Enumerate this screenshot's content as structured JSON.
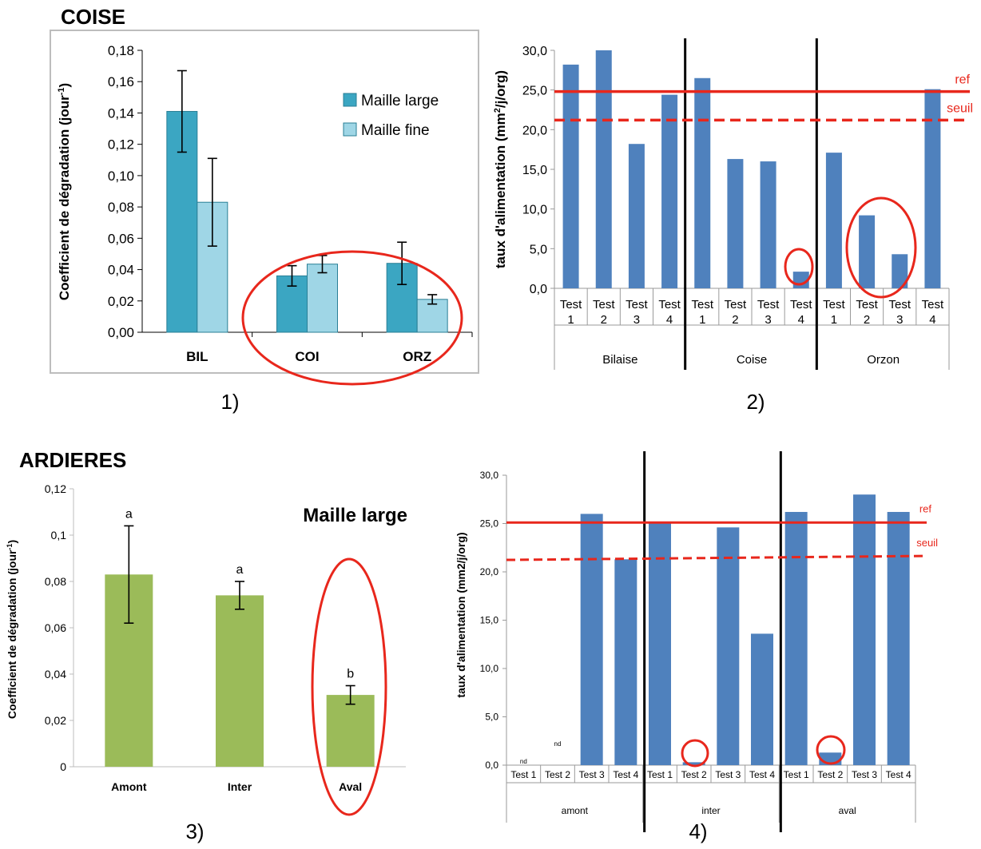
{
  "sections": {
    "top": "COISE",
    "bottom": "ARDIERES"
  },
  "panel_labels": [
    "1)",
    "2)",
    "3)",
    "4)"
  ],
  "colors": {
    "teal_dark": "#3ba6c2",
    "teal_light": "#9fd6e6",
    "blue": "#4f81bd",
    "green": "#9bbb59",
    "red": "#e8271c"
  },
  "chart_data": [
    {
      "id": "chart1",
      "type": "bar",
      "ylabel": "Coefficient de dégradation (jour",
      "ylabel_sup": "-1",
      "ylabel_close": ")",
      "ylim": [
        0,
        0.18
      ],
      "yticks": [
        "0,00",
        "0,02",
        "0,04",
        "0,06",
        "0,08",
        "0,10",
        "0,12",
        "0,14",
        "0,16",
        "0,18"
      ],
      "categories": [
        "BIL",
        "COI",
        "ORZ"
      ],
      "series": [
        {
          "name": "Maille large",
          "values": [
            0.141,
            0.036,
            0.044
          ],
          "errors": [
            0.026,
            0.0065,
            0.0135
          ]
        },
        {
          "name": "Maille fine",
          "values": [
            0.083,
            0.0435,
            0.021
          ],
          "errors": [
            0.028,
            0.0055,
            0.003
          ]
        }
      ],
      "legend": "top-right",
      "annotation": "red ellipse around COI and ORZ"
    },
    {
      "id": "chart2",
      "type": "bar",
      "ylabel": "taux d'alimentation (mm",
      "ylabel_sup": "2",
      "ylabel_close": "/j/org)",
      "ylim": [
        0,
        30
      ],
      "yticks": [
        "0,0",
        "5,0",
        "10,0",
        "15,0",
        "20,0",
        "25,0",
        "30,0"
      ],
      "groups": [
        "Bilaise",
        "Coise",
        "Orzon"
      ],
      "test_labels": [
        "Test",
        "Test",
        "Test",
        "Test",
        "Test",
        "Test",
        "Test",
        "Test",
        "Test",
        "Test",
        "Test",
        "Test"
      ],
      "test_numbers": [
        "1",
        "2",
        "3",
        "4",
        "1",
        "2",
        "3",
        "4",
        "1",
        "2",
        "3",
        "4"
      ],
      "values": [
        28.2,
        30.0,
        18.2,
        24.4,
        26.5,
        16.3,
        16.0,
        2.1,
        17.1,
        9.2,
        4.3,
        25.1
      ],
      "ref": {
        "label": "ref",
        "value": 24.8
      },
      "seuil": {
        "label": "seuil",
        "value": 21.2
      }
    },
    {
      "id": "chart3",
      "type": "bar",
      "title": "Maille large",
      "ylabel": "Coefficient de dégradation (jour",
      "ylabel_sup": "-1",
      "ylabel_close": ")",
      "ylim": [
        0,
        0.12
      ],
      "yticks": [
        "0",
        "0,02",
        "0,04",
        "0,06",
        "0,08",
        "0,1",
        "0,12"
      ],
      "categories": [
        "Amont",
        "Inter",
        "Aval"
      ],
      "values": [
        0.083,
        0.074,
        0.031
      ],
      "errors": [
        0.021,
        0.006,
        0.004
      ],
      "letters": [
        "a",
        "a",
        "b"
      ]
    },
    {
      "id": "chart4",
      "type": "bar",
      "ylabel": "taux d'alimentation (mm2/j/org)",
      "ylim": [
        0,
        30
      ],
      "yticks": [
        "0,0",
        "5,0",
        "10,0",
        "15,0",
        "20,0",
        "25,0",
        "30,0"
      ],
      "groups": [
        "amont",
        "inter",
        "aval"
      ],
      "tests": [
        "Test 1",
        "Test 2",
        "Test 3",
        "Test 4",
        "Test 1",
        "Test 2",
        "Test 3",
        "Test 4",
        "Test 1",
        "Test 2",
        "Test 3",
        "Test 4"
      ],
      "values": [
        null,
        null,
        26.0,
        21.3,
        25.0,
        0.3,
        24.6,
        13.6,
        26.2,
        1.3,
        28.0,
        26.2
      ],
      "nd_labels": [
        "nd",
        "nd"
      ],
      "ref": {
        "label": "ref",
        "value": 25.1
      },
      "seuil": {
        "label": "seuil",
        "value": 21.4
      }
    }
  ]
}
